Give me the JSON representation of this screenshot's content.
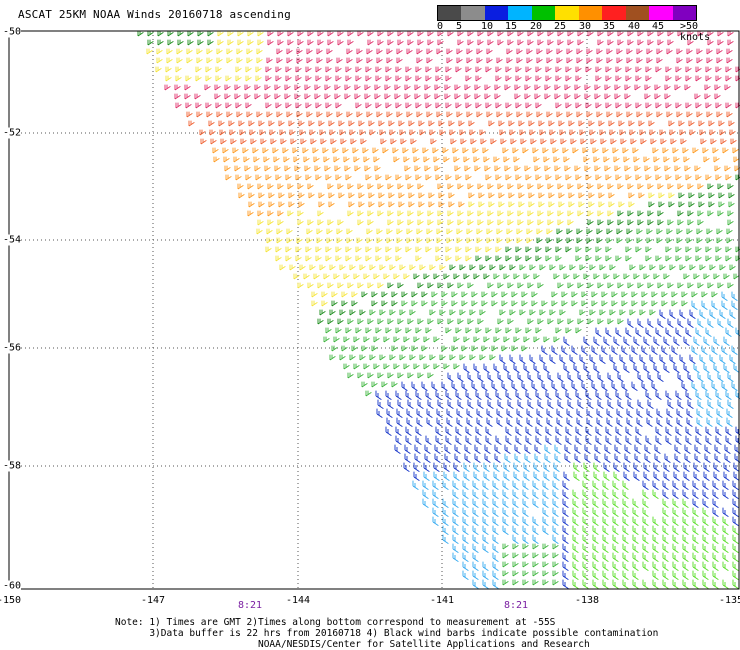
{
  "title": "ASCAT 25KM NOAA Winds 20160718 ascending",
  "legend": {
    "labels": [
      "0",
      "5",
      "10",
      "15",
      "20",
      "25",
      "30",
      "35",
      "40",
      "45",
      ">50 knots"
    ],
    "colors": [
      "#4a4a4a",
      "#8c8c8c",
      "#0a1ee0",
      "#00b4ff",
      "#00c000",
      "#ffe000",
      "#ff9000",
      "#ff2020",
      "#a05020",
      "#ff00ff",
      "#8000c0"
    ]
  },
  "map": {
    "lon_ticks": [
      "-150",
      "-147",
      "-144",
      "-141",
      "-138",
      "-135"
    ],
    "lat_ticks": [
      "-50",
      "-52",
      "-54",
      "-56",
      "-58",
      "-60"
    ],
    "time_labels": [
      "8:21",
      "8:21"
    ],
    "barb_colors": {
      "dark_green": "#1a8c1a",
      "yellow": "#f5e53a",
      "orange": "#ff9a1f",
      "red_orange": "#f06030",
      "crimson": "#e0306a",
      "green": "#3cb43c",
      "blue": "#1030c8",
      "light_blue": "#30a8f0",
      "lime": "#55dd22"
    }
  },
  "notes": [
    "Note: 1) Times are GMT 2)Times along bottom correspond to measurement at -55S",
    "      3)Data buffer is 22 hrs from 20160718 4) Black wind barbs indicate possible contamination",
    "                         NOAA/NESDIS/Center for Satellite Applications and Research"
  ]
}
